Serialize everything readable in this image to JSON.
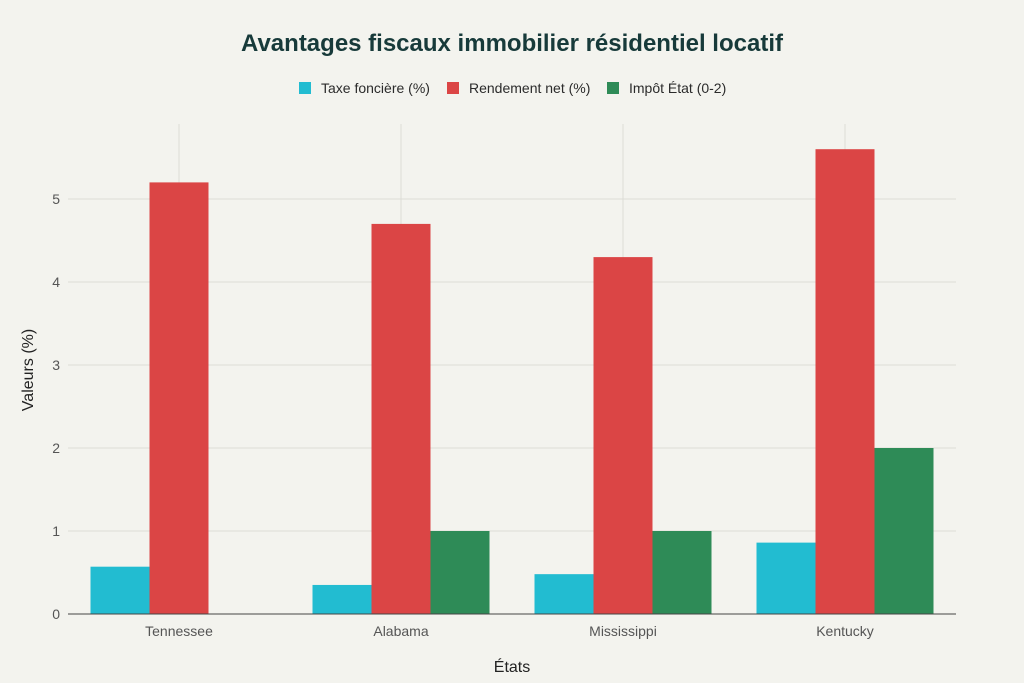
{
  "chart_data": {
    "type": "bar",
    "title": "Avantages fiscaux immobilier résidentiel locatif",
    "xlabel": "États",
    "ylabel": "Valeurs (%)",
    "categories": [
      "Tennessee",
      "Alabama",
      "Mississippi",
      "Kentucky"
    ],
    "series": [
      {
        "name": "Taxe foncière (%)",
        "color": "#22bcd1",
        "values": [
          0.57,
          0.35,
          0.48,
          0.86
        ]
      },
      {
        "name": "Rendement net (%)",
        "color": "#db4545",
        "values": [
          5.2,
          4.7,
          4.3,
          5.6
        ]
      },
      {
        "name": "Impôt État (0-2)",
        "color": "#2e8b57",
        "values": [
          0,
          1,
          1,
          2
        ]
      }
    ],
    "ylim": [
      0,
      5.9
    ],
    "yticks": [
      0,
      1,
      2,
      3,
      4,
      5
    ],
    "grid": true,
    "legend_position": "top-center"
  }
}
